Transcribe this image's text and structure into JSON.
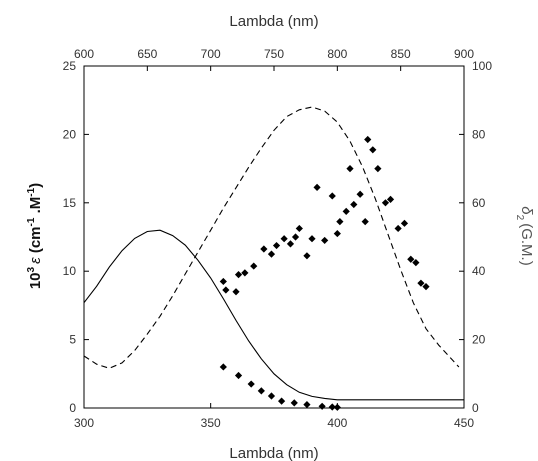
{
  "chart_data": {
    "type": "line",
    "bottom_axis": {
      "label": "Lambda (nm)",
      "range": [
        300,
        450
      ],
      "ticks": [
        300,
        350,
        400,
        450
      ]
    },
    "top_axis": {
      "label": "Lambda (nm)",
      "range": [
        600,
        900
      ],
      "ticks": [
        600,
        650,
        700,
        750,
        800,
        850,
        900
      ]
    },
    "left_axis": {
      "label_prefix": "10",
      "label_sup_prefix": "3",
      "label_symbol": "ε",
      "label_unit_open": " (cm",
      "label_sup_1": "-1",
      "label_unit_mid": " .M",
      "label_sup_2": "-1",
      "label_unit_close": ")",
      "range": [
        0,
        25
      ],
      "ticks": [
        0,
        5,
        10,
        15,
        20,
        25
      ]
    },
    "right_axis": {
      "label_symbol": "δ",
      "label_sub": "2",
      "label_unit": "(G.M.)",
      "range": [
        0,
        100
      ],
      "ticks": [
        0,
        20,
        40,
        60,
        80,
        100
      ]
    },
    "series": [
      {
        "style": "solid",
        "axis": "bottom-left",
        "color": "#000000",
        "x": [
          300,
          305,
          310,
          315,
          320,
          325,
          330,
          335,
          340,
          345,
          350,
          355,
          360,
          365,
          370,
          375,
          380,
          385,
          390,
          395,
          400,
          410,
          420,
          430,
          440,
          450
        ],
        "y": [
          7.7,
          8.9,
          10.3,
          11.5,
          12.4,
          12.9,
          13.0,
          12.6,
          11.9,
          10.8,
          9.5,
          8.0,
          6.4,
          4.9,
          3.6,
          2.5,
          1.7,
          1.15,
          0.85,
          0.7,
          0.6,
          0.6,
          0.6,
          0.6,
          0.6,
          0.6
        ]
      },
      {
        "style": "dashed",
        "axis": "bottom-left",
        "color": "#000000",
        "x": [
          300,
          305,
          310,
          315,
          320,
          325,
          330,
          335,
          340,
          345,
          350,
          355,
          360,
          365,
          370,
          375,
          380,
          385,
          390,
          395,
          400,
          405,
          410,
          415,
          420,
          425,
          430,
          435,
          440,
          445,
          448
        ],
        "y": [
          3.8,
          3.2,
          2.9,
          3.3,
          4.2,
          5.4,
          6.7,
          8.2,
          9.8,
          11.4,
          13.0,
          14.6,
          16.1,
          17.6,
          19.0,
          20.3,
          21.3,
          21.8,
          22.0,
          21.7,
          20.9,
          19.5,
          17.6,
          15.3,
          12.7,
          10.1,
          7.7,
          5.8,
          4.6,
          3.6,
          3.0
        ]
      },
      {
        "style": "diamond-markers",
        "axis": "top-right",
        "color": "#000000",
        "x": [
          710,
          712,
          720,
          722,
          727,
          734,
          742,
          748,
          752,
          758,
          763,
          767,
          770,
          776,
          780,
          784,
          790,
          796,
          800,
          802,
          807,
          810,
          813,
          818,
          822,
          824,
          828,
          832,
          838,
          842,
          848,
          853,
          858,
          862,
          866,
          870
        ],
        "y": [
          37,
          34.5,
          34,
          39,
          39.5,
          41.5,
          46.5,
          45,
          47.5,
          49.5,
          48,
          50,
          52.5,
          44.5,
          49.5,
          64.5,
          49,
          62,
          51,
          54.5,
          57.5,
          70,
          59.5,
          62.5,
          54.5,
          78.5,
          75.5,
          70,
          60,
          61,
          52.5,
          54,
          43.5,
          42.5,
          36.5,
          35.5
        ]
      },
      {
        "style": "diamond-markers",
        "axis": "top-right",
        "color": "#000000",
        "x": [
          710,
          722,
          732,
          740,
          748,
          756,
          766,
          776,
          788,
          796,
          800
        ],
        "y": [
          12,
          9.5,
          7,
          5,
          3.5,
          2,
          1.5,
          1,
          0.5,
          0.3,
          0.2
        ]
      }
    ]
  }
}
